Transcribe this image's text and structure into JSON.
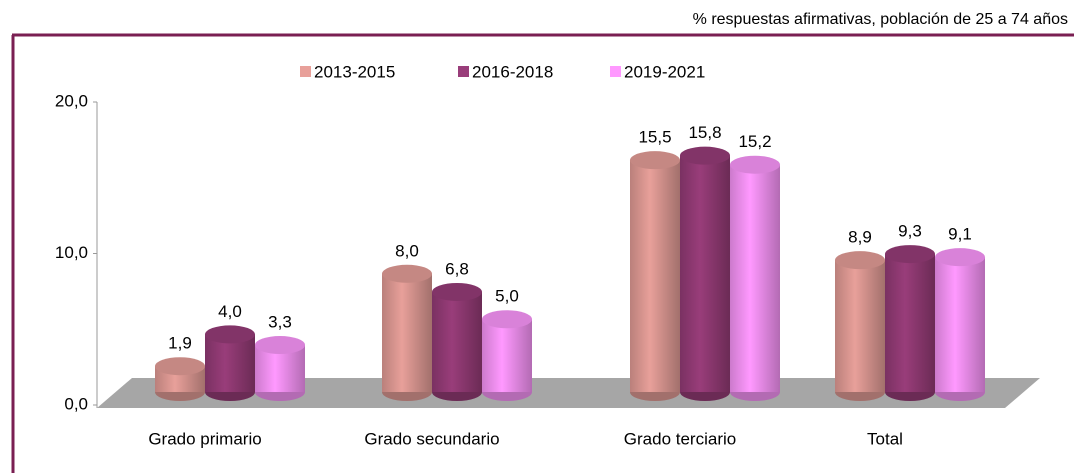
{
  "chart_data": {
    "type": "bar",
    "subtitle": "% respuestas afirmativas, población de 25 a 74 años",
    "categories": [
      "Grado primario",
      "Grado secundario",
      "Grado terciario",
      "Total"
    ],
    "series": [
      {
        "name": "2013-2015",
        "color": "#e8a09a",
        "values": [
          1.9,
          8.0,
          15.5,
          8.9
        ],
        "value_labels": [
          "1,9",
          "8,0",
          "15,5",
          "8,9"
        ]
      },
      {
        "name": "2016-2018",
        "color": "#993d7a",
        "values": [
          4.0,
          6.8,
          15.8,
          9.3
        ],
        "value_labels": [
          "4,0",
          "6,8",
          "15,8",
          "9,3"
        ]
      },
      {
        "name": "2019-2021",
        "color": "#ff99ff",
        "values": [
          3.3,
          5.0,
          15.2,
          9.1
        ],
        "value_labels": [
          "3,3",
          "5,0",
          "15,2",
          "9,1"
        ]
      }
    ],
    "ylim": [
      0,
      20
    ],
    "yticks": [
      {
        "value": 0,
        "label": "0,0"
      },
      {
        "value": 10,
        "label": "10,0"
      },
      {
        "value": 20,
        "label": "20,0"
      }
    ],
    "legend": "top"
  }
}
